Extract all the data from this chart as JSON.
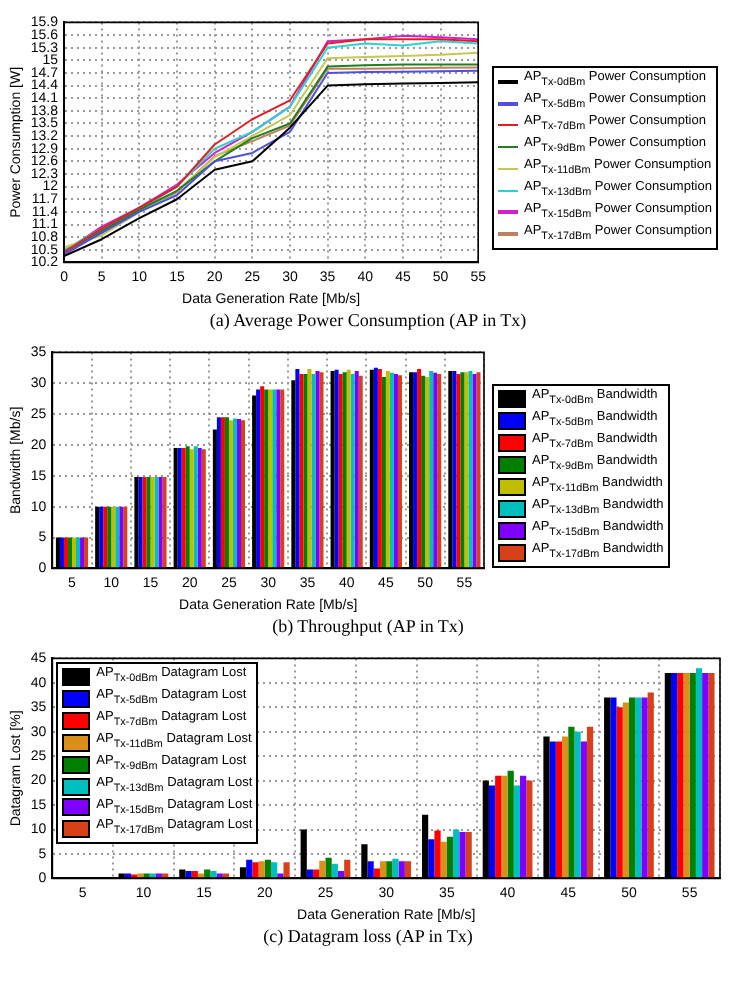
{
  "chart_data": [
    {
      "type": "line",
      "title": "(a) Average Power Consumption (AP in Tx)",
      "xlabel": "Data Generation Rate [Mb/s]",
      "ylabel": "Power Consumption [W]",
      "x": [
        0,
        5,
        10,
        15,
        20,
        25,
        30,
        35,
        40,
        45,
        50,
        55
      ],
      "xlim": [
        0,
        55
      ],
      "xticks": [
        0,
        5,
        10,
        15,
        20,
        25,
        30,
        35,
        40,
        45,
        50,
        55
      ],
      "ylim": [
        10.2,
        15.9
      ],
      "yticks": [
        10.2,
        10.5,
        10.8,
        11.1,
        11.4,
        11.7,
        12,
        12.3,
        12.6,
        12.9,
        13.2,
        13.5,
        13.8,
        14.1,
        14.4,
        14.7,
        15,
        15.3,
        15.6,
        15.9
      ],
      "grid": true,
      "legend": "right",
      "marker": "none",
      "series": [
        {
          "name": "AP$_{Tx-0dBm}$ Power Consumption",
          "color": "#000000",
          "values": [
            10.35,
            10.75,
            11.25,
            11.7,
            12.4,
            12.6,
            13.4,
            14.4,
            14.43,
            14.45,
            14.46,
            14.48
          ]
        },
        {
          "name": "AP$_{Tx-5dBm}$ Power Consumption",
          "color": "#5050e0",
          "values": [
            10.4,
            10.9,
            11.4,
            11.8,
            12.6,
            12.8,
            13.3,
            14.7,
            14.72,
            14.73,
            14.74,
            14.75
          ]
        },
        {
          "name": "AP$_{Tx-7dBm}$ Power Consumption",
          "color": "#e02020",
          "values": [
            10.45,
            11.0,
            11.5,
            12.0,
            13.0,
            13.6,
            14.05,
            15.4,
            15.5,
            15.5,
            15.5,
            15.45
          ]
        },
        {
          "name": "AP$_{Tx-9dBm}$ Power Consumption",
          "color": "#208020",
          "values": [
            10.4,
            10.95,
            11.45,
            11.9,
            12.6,
            13.15,
            13.5,
            14.85,
            14.88,
            14.9,
            14.9,
            14.9
          ]
        },
        {
          "name": "AP$_{Tx-11dBm}$ Power Consumption",
          "color": "#c8c850",
          "values": [
            10.56,
            10.84,
            11.4,
            11.9,
            12.7,
            13.2,
            13.7,
            15.05,
            15.08,
            15.1,
            15.13,
            15.18
          ]
        },
        {
          "name": "AP$_{Tx-13dBm}$ Power Consumption",
          "color": "#30d0d0",
          "values": [
            10.5,
            11.0,
            11.45,
            12.0,
            12.9,
            13.3,
            13.9,
            15.3,
            15.4,
            15.35,
            15.45,
            15.4
          ]
        },
        {
          "name": "AP$_{Tx-15dBm}$ Power Consumption",
          "color": "#d020d0",
          "values": [
            10.45,
            11.05,
            11.5,
            12.05,
            12.8,
            13.3,
            13.9,
            15.45,
            15.5,
            15.58,
            15.55,
            15.5
          ]
        },
        {
          "name": "AP$_{Tx-17dBm}$ Power Consumption",
          "color": "#c08060",
          "values": [
            10.37,
            10.92,
            11.42,
            11.87,
            12.72,
            13.08,
            13.45,
            14.8,
            14.8,
            14.81,
            14.82,
            14.83
          ]
        }
      ]
    },
    {
      "type": "bar",
      "title": "(b) Throughput (AP in Tx)",
      "xlabel": "Data Generation Rate [Mb/s]",
      "ylabel": "Bandwidth [Mb/s]",
      "categories": [
        "5",
        "10",
        "15",
        "20",
        "25",
        "30",
        "35",
        "40",
        "45",
        "50",
        "55"
      ],
      "ylim": [
        0,
        35
      ],
      "yticks": [
        0,
        5,
        10,
        15,
        20,
        25,
        30,
        35
      ],
      "grid": true,
      "legend": "right",
      "series": [
        {
          "name": "AP$_{Tx-0dBm}$ Bandwidth",
          "color": "#000000",
          "values": [
            5,
            10,
            14.8,
            19.5,
            22.5,
            28,
            30.5,
            32,
            32.2,
            31.8,
            32
          ]
        },
        {
          "name": "AP$_{Tx-5dBm}$ Bandwidth",
          "color": "#0000ff",
          "values": [
            5,
            10,
            14.8,
            19.5,
            24.5,
            29,
            32.3,
            32.2,
            32.5,
            31.8,
            32
          ]
        },
        {
          "name": "AP$_{Tx-7dBm}$ Bandwidth",
          "color": "#ff0000",
          "values": [
            5,
            10,
            14.8,
            19.5,
            24.5,
            29.5,
            31.5,
            31.5,
            32.3,
            32.3,
            31.5
          ]
        },
        {
          "name": "AP$_{Tx-9dBm}$ Bandwidth",
          "color": "#007f00",
          "values": [
            5,
            10,
            14.8,
            19.8,
            24.5,
            29,
            31.5,
            31.8,
            31,
            31.2,
            31.8
          ]
        },
        {
          "name": "AP$_{Tx-11dBm}$ Bandwidth",
          "color": "#bfbf00",
          "values": [
            5,
            10,
            14.8,
            19.3,
            24,
            29,
            32.3,
            32.2,
            32,
            31,
            31.8
          ]
        },
        {
          "name": "AP$_{Tx-13dBm}$ Bandwidth",
          "color": "#00bfbf",
          "values": [
            5,
            10,
            14.8,
            19.8,
            24.3,
            29,
            31.5,
            31.5,
            31.7,
            32,
            32
          ]
        },
        {
          "name": "AP$_{Tx-15dBm}$ Bandwidth",
          "color": "#7f00ff",
          "values": [
            5,
            10,
            14.8,
            19.5,
            24.2,
            29,
            32,
            32,
            31.5,
            31.7,
            31.5
          ]
        },
        {
          "name": "AP$_{Tx-17dBm}$ Bandwidth",
          "color": "#d8401a",
          "values": [
            5,
            10,
            14.8,
            19.3,
            24,
            29,
            31.8,
            31.2,
            31.3,
            31.5,
            31.8
          ]
        }
      ]
    },
    {
      "type": "bar",
      "title": "(c) Datagram loss (AP in Tx)",
      "xlabel": "Data Generation Rate [Mb/s]",
      "ylabel": "Datagram Lost [%]",
      "categories": [
        "5",
        "10",
        "15",
        "20",
        "25",
        "30",
        "35",
        "40",
        "45",
        "50",
        "55"
      ],
      "ylim": [
        0,
        45
      ],
      "yticks": [
        0,
        5,
        10,
        15,
        20,
        25,
        30,
        35,
        40,
        45
      ],
      "grid": true,
      "legend": "top left",
      "series": [
        {
          "name": "AP$_{Tx-0dBm}$ Datagram Lost",
          "color": "#000000",
          "values": [
            0,
            1,
            1.8,
            2.3,
            10,
            7,
            13,
            20,
            29,
            37,
            42
          ]
        },
        {
          "name": "AP$_{Tx-5dBm}$ Datagram Lost",
          "color": "#0000ff",
          "values": [
            0,
            1,
            1.5,
            3.8,
            1.8,
            3.5,
            8,
            19,
            28,
            37,
            42
          ]
        },
        {
          "name": "AP$_{Tx-7dBm}$ Datagram Lost",
          "color": "#ff0000",
          "values": [
            0,
            0.8,
            1.5,
            3.3,
            1.8,
            2,
            9.8,
            21,
            28,
            35,
            42
          ]
        },
        {
          "name": "AP$_{Tx-11dBm}$ Datagram Lost",
          "color": "#d98f1a",
          "values": [
            0,
            1,
            1,
            3.5,
            3.6,
            3.5,
            7.5,
            21,
            29,
            36,
            42
          ]
        },
        {
          "name": "AP$_{Tx-9dBm}$ Datagram Lost",
          "color": "#007f00",
          "values": [
            0,
            1,
            1.8,
            3.8,
            4.2,
            3.5,
            8.5,
            22,
            31,
            37,
            42
          ]
        },
        {
          "name": "AP$_{Tx-13dBm}$ Datagram Lost",
          "color": "#00bfbf",
          "values": [
            0,
            1,
            1.5,
            3.3,
            3,
            4,
            10,
            19,
            30,
            37,
            43
          ]
        },
        {
          "name": "AP$_{Tx-15dBm}$ Datagram Lost",
          "color": "#7f00ff",
          "values": [
            0,
            1,
            1,
            1,
            1.5,
            3.5,
            9.5,
            21,
            28,
            37,
            42
          ]
        },
        {
          "name": "AP$_{Tx-17dBm}$ Datagram Lost",
          "color": "#d8401a",
          "values": [
            0,
            1,
            1,
            3.3,
            3.8,
            3.5,
            9.5,
            20,
            31,
            38,
            42
          ]
        }
      ]
    }
  ]
}
